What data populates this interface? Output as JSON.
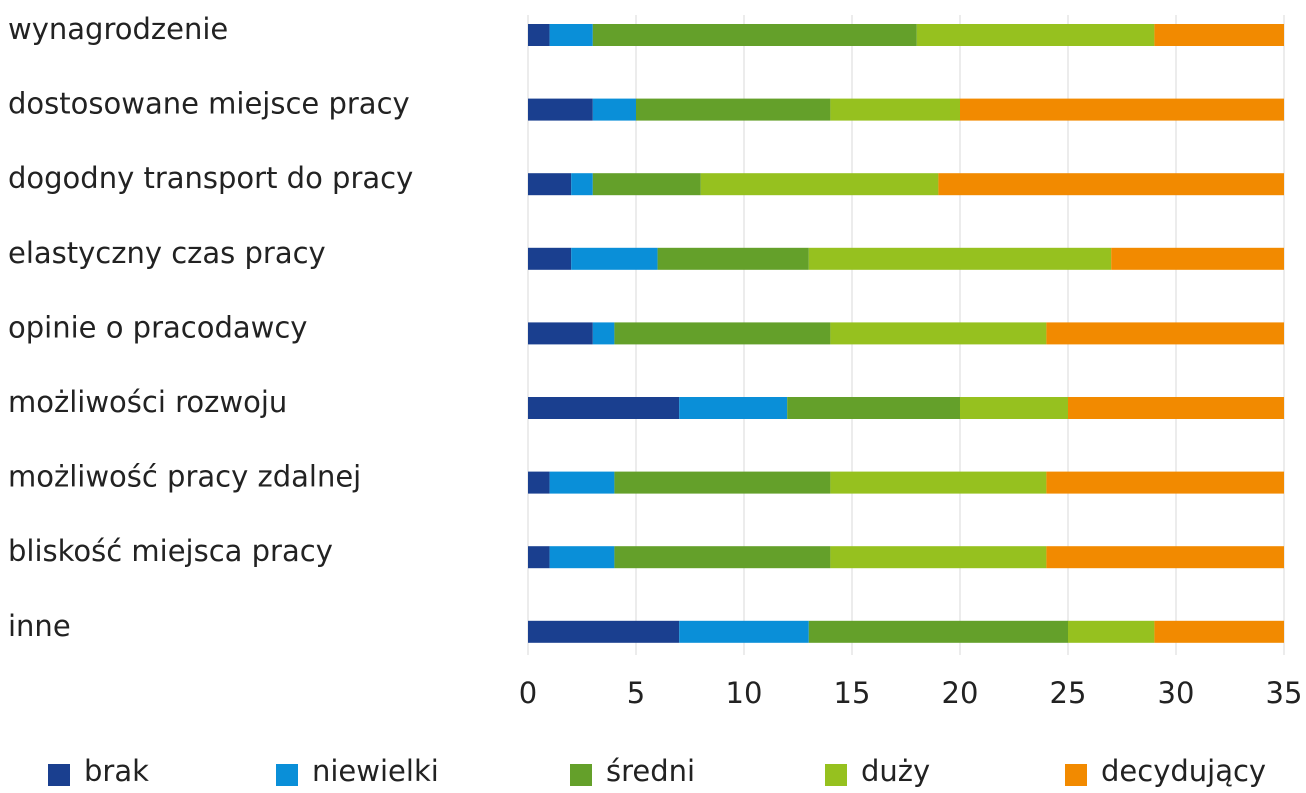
{
  "chart_data": {
    "type": "stacked_bar_horizontal",
    "categories": [
      "wynagrodzenie",
      "dostosowane miejsce pracy",
      "dogodny transport do pracy",
      "elastyczny czas pracy",
      "opinie o pracodawcy",
      "możliwości rozwoju",
      "możliwość pracy zdalnej",
      "bliskość miejsca pracy",
      "inne"
    ],
    "series": [
      {
        "name": "brak",
        "color": "#1a3f8f",
        "values": [
          1,
          3,
          2,
          2,
          3,
          7,
          1,
          1,
          7
        ]
      },
      {
        "name": "niewielki",
        "color": "#0a8fd8",
        "values": [
          2,
          2,
          1,
          4,
          1,
          5,
          3,
          3,
          6
        ]
      },
      {
        "name": "średni",
        "color": "#64a02a",
        "values": [
          15,
          9,
          5,
          7,
          10,
          8,
          10,
          10,
          12
        ]
      },
      {
        "name": "duży",
        "color": "#96c11f",
        "values": [
          11,
          6,
          11,
          14,
          10,
          5,
          10,
          10,
          4
        ]
      },
      {
        "name": "decydujący",
        "color": "#f28a00",
        "values": [
          6,
          15,
          16,
          8,
          11,
          10,
          11,
          11,
          6
        ]
      }
    ],
    "xlim": [
      0,
      35
    ],
    "xticks": [
      0,
      5,
      10,
      15,
      20,
      25,
      30,
      35
    ],
    "grid": true,
    "legend": "bottom"
  }
}
